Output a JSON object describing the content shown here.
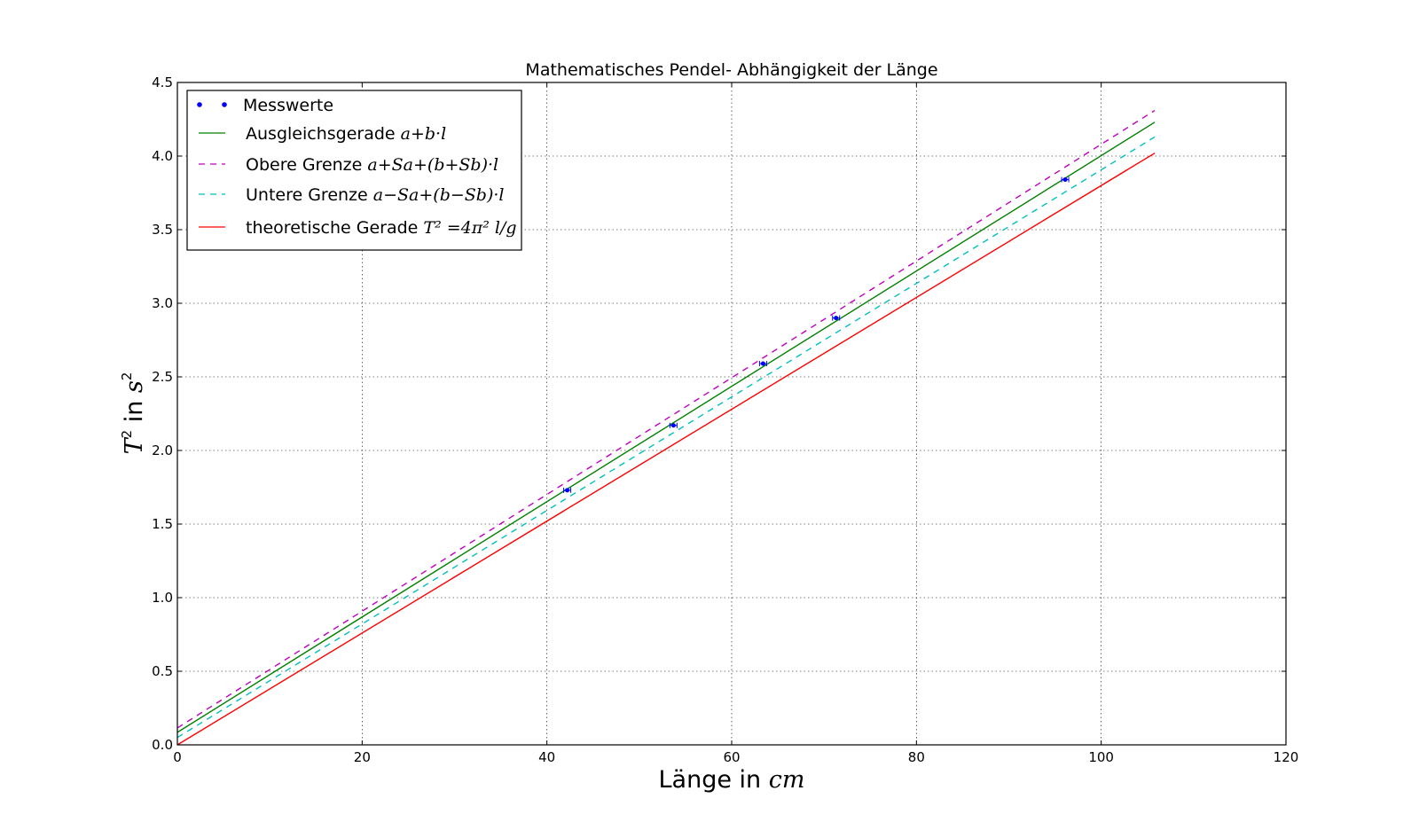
{
  "chart_data": {
    "type": "line",
    "title": "Mathematisches Pendel- Abhängigkeit der Länge",
    "xlabel": "Länge in",
    "xlabel_unit": "cm",
    "ylabel": "in",
    "ylabel_var": "T",
    "ylabel_unit": "s",
    "xlim": [
      0,
      120
    ],
    "ylim": [
      0,
      4.5
    ],
    "xticks": [
      0,
      20,
      40,
      60,
      80,
      100,
      120
    ],
    "yticks": [
      0.0,
      0.5,
      1.0,
      1.5,
      2.0,
      2.5,
      3.0,
      3.5,
      4.0,
      4.5
    ],
    "grid": true,
    "legend_position": "top-left",
    "measurements": {
      "name": "Messwerte",
      "color": "#0000ff",
      "points": [
        {
          "x": 42.2,
          "y": 1.73
        },
        {
          "x": 53.7,
          "y": 2.17
        },
        {
          "x": 63.4,
          "y": 2.59
        },
        {
          "x": 71.3,
          "y": 2.9
        },
        {
          "x": 96.1,
          "y": 3.84
        }
      ]
    },
    "series": [
      {
        "name": "Ausgleichsgerade",
        "formula": "a+b·l",
        "color": "#008000",
        "dash": "solid",
        "x": [
          0,
          105.8
        ],
        "y": [
          0.085,
          4.23
        ]
      },
      {
        "name": "Obere Grenze",
        "formula": "a+Sa+(b+Sb)·l",
        "color": "#bf00bf",
        "dash": "dashed",
        "x": [
          0,
          105.8
        ],
        "y": [
          0.115,
          4.31
        ]
      },
      {
        "name": "Untere Grenze",
        "formula": "a−Sa+(b−Sb)·l",
        "color": "#00bfbf",
        "dash": "dashed",
        "x": [
          0,
          105.8
        ],
        "y": [
          0.05,
          4.13
        ]
      },
      {
        "name": "theoretische Gerade",
        "formula": "T² =4π² l/g",
        "color": "#ff0000",
        "dash": "solid",
        "x": [
          0,
          105.8
        ],
        "y": [
          0.0,
          4.02
        ]
      }
    ]
  }
}
